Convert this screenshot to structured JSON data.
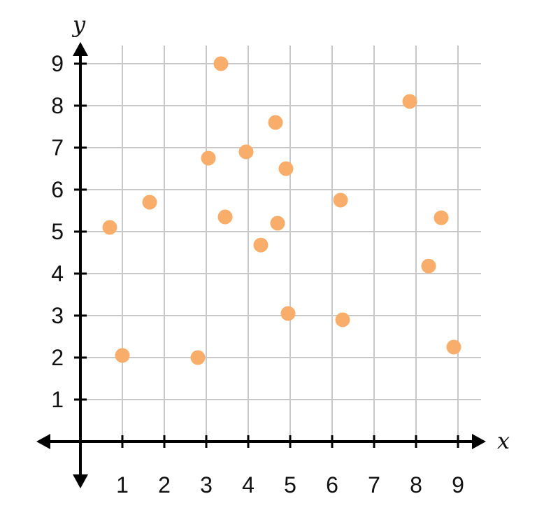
{
  "chart_data": {
    "type": "scatter",
    "title": "",
    "xlabel": "x",
    "ylabel": "y",
    "xlim": [
      0,
      9
    ],
    "ylim": [
      0,
      9
    ],
    "grid": true,
    "x_ticks": [
      "1",
      "2",
      "3",
      "4",
      "5",
      "6",
      "7",
      "8",
      "9"
    ],
    "y_ticks": [
      "1",
      "2",
      "3",
      "4",
      "5",
      "6",
      "7",
      "8",
      "9"
    ],
    "colors": {
      "point": "#f8ae6a",
      "grid": "#c8c8c8",
      "axis": "#000000"
    },
    "points": [
      {
        "x": 0.7,
        "y": 5.1
      },
      {
        "x": 1.0,
        "y": 2.05
      },
      {
        "x": 1.65,
        "y": 5.7
      },
      {
        "x": 2.8,
        "y": 2.0
      },
      {
        "x": 3.05,
        "y": 6.75
      },
      {
        "x": 3.35,
        "y": 9.0
      },
      {
        "x": 3.45,
        "y": 5.35
      },
      {
        "x": 3.95,
        "y": 6.9
      },
      {
        "x": 4.3,
        "y": 4.68
      },
      {
        "x": 4.65,
        "y": 7.6
      },
      {
        "x": 4.7,
        "y": 5.2
      },
      {
        "x": 4.9,
        "y": 6.5
      },
      {
        "x": 4.95,
        "y": 3.05
      },
      {
        "x": 6.2,
        "y": 5.75
      },
      {
        "x": 6.25,
        "y": 2.9
      },
      {
        "x": 7.85,
        "y": 8.1
      },
      {
        "x": 8.3,
        "y": 4.18
      },
      {
        "x": 8.6,
        "y": 5.33
      },
      {
        "x": 8.9,
        "y": 2.25
      }
    ]
  }
}
